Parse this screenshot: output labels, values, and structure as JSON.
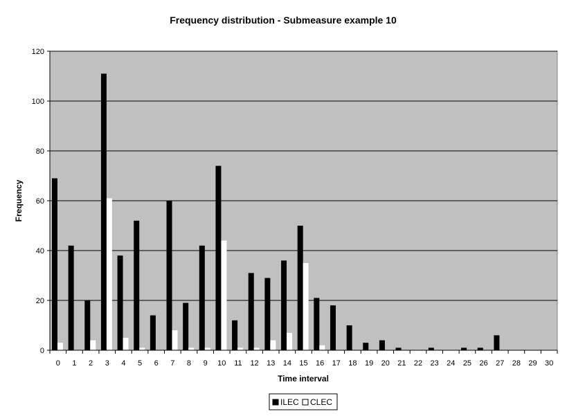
{
  "chart_data": {
    "type": "bar",
    "title": "Frequency distribution - Submeasure example 10",
    "xlabel": "Time interval",
    "ylabel": "Frequency",
    "ylim": [
      0,
      120
    ],
    "yticks": [
      0,
      20,
      40,
      60,
      80,
      100,
      120
    ],
    "grid": true,
    "legend_position": "bottom",
    "plot_background": "#c0c0c0",
    "categories": [
      "0",
      "1",
      "2",
      "3",
      "4",
      "5",
      "6",
      "7",
      "8",
      "9",
      "10",
      "11",
      "12",
      "13",
      "14",
      "15",
      "16",
      "17",
      "18",
      "19",
      "20",
      "21",
      "22",
      "23",
      "24",
      "25",
      "26",
      "27",
      "28",
      "29",
      "30"
    ],
    "series": [
      {
        "name": "ILEC",
        "color": "#000000",
        "values": [
          69,
          42,
          20,
          111,
          38,
          52,
          14,
          60,
          19,
          42,
          74,
          12,
          31,
          29,
          36,
          50,
          21,
          18,
          10,
          3,
          4,
          1,
          0,
          1,
          0,
          1,
          1,
          6,
          0,
          0,
          0
        ]
      },
      {
        "name": "CLEC",
        "color": "#ffffff",
        "values": [
          3,
          0,
          4,
          61,
          5,
          1,
          0,
          8,
          1,
          1,
          44,
          1,
          1,
          4,
          7,
          35,
          2,
          0,
          0,
          0,
          0,
          0,
          0,
          0,
          0,
          0,
          0,
          0,
          0,
          0,
          0
        ]
      }
    ]
  }
}
